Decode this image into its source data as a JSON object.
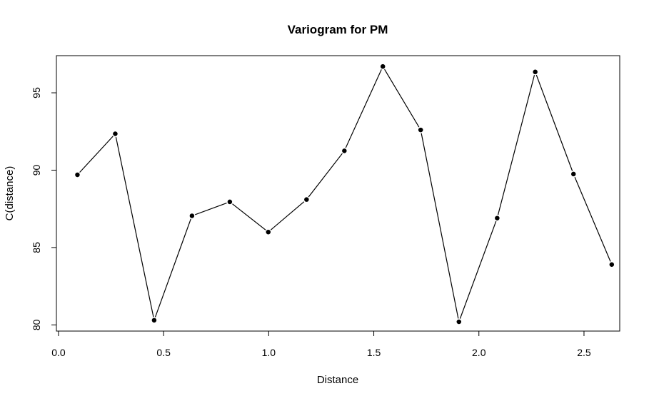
{
  "chart_data": {
    "type": "line",
    "title": "Variogram for PM",
    "xlabel": "Distance",
    "ylabel": "C(distance)",
    "xlim": [
      -0.01,
      2.67
    ],
    "ylim": [
      79.6,
      97.4
    ],
    "x_ticks": [
      0.0,
      0.5,
      1.0,
      1.5,
      2.0,
      2.5
    ],
    "x_tick_labels": [
      "0.0",
      "0.5",
      "1.0",
      "1.5",
      "2.0",
      "2.5"
    ],
    "y_ticks": [
      80,
      85,
      90,
      95
    ],
    "y_tick_labels": [
      "80",
      "85",
      "90",
      "95"
    ],
    "grid": false,
    "series": [
      {
        "x": [
          0.09,
          0.27,
          0.455,
          0.635,
          0.815,
          0.998,
          1.18,
          1.36,
          1.543,
          1.723,
          1.905,
          2.087,
          2.268,
          2.45,
          2.632
        ],
        "y": [
          89.7,
          92.35,
          80.3,
          87.05,
          87.95,
          86.0,
          88.1,
          91.25,
          96.7,
          92.6,
          80.2,
          86.9,
          96.35,
          89.75,
          83.9
        ],
        "color": "#000000",
        "marker": "filled-circle"
      }
    ]
  }
}
